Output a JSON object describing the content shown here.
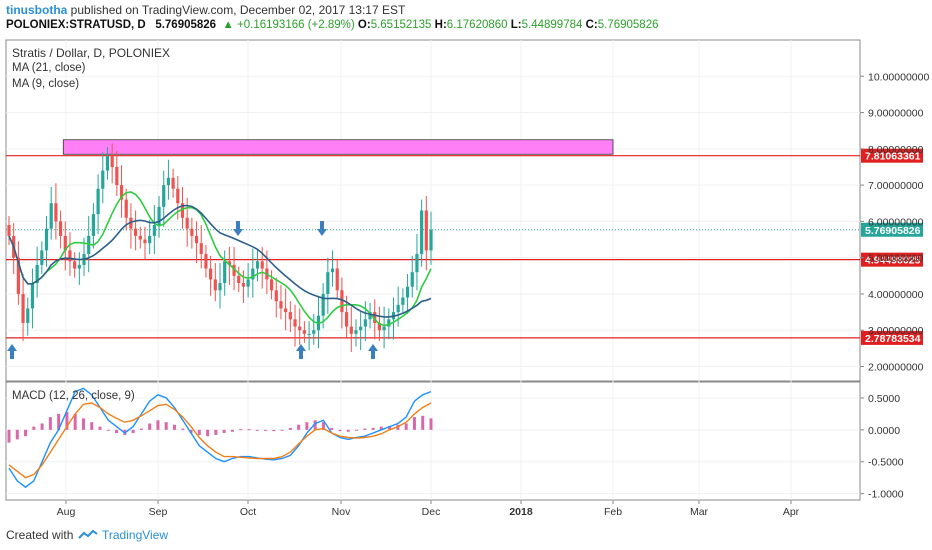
{
  "header": {
    "user": "tinusbotha",
    "published": "published on TradingView.com, December 02, 2017 13:17 EST",
    "symbol": "POLONIEX:STRATUSD, D",
    "last": "5.76905826",
    "change": "▲ +0.16193166 (+2.89%)",
    "o_label": "O:",
    "o": "5.65152135",
    "h_label": "H:",
    "h": "6.17620860",
    "l_label": "L:",
    "l": "5.44899784",
    "c_label": "C:",
    "c": "5.76905826"
  },
  "legend": {
    "title": "Stratis / Dollar, D, POLONIEX",
    "ma21": "MA (21, close)",
    "ma9": "MA (9, close)",
    "macd": "MACD (12, 26, close, 9)"
  },
  "footer": {
    "created": "Created with",
    "brand": "TradingView"
  },
  "colors": {
    "up": "#26a69a",
    "down": "#ef5350",
    "ma9": "#2ecc40",
    "ma21": "#2c5f8a",
    "hline": "#e02020",
    "zone": "#ff7ff6",
    "macd": "#1e90ff",
    "signal": "#f07f1a",
    "hist": "#d44c9c",
    "arrow": "#3a7fc1"
  },
  "chart_data": [
    {
      "type": "candlestick",
      "title": "Stratis / Dollar, D, POLONIEX",
      "x_ticks": [
        "Aug",
        "Sep",
        "Oct",
        "Nov",
        "Dec",
        "2018",
        "Feb",
        "Mar",
        "Apr"
      ],
      "y_ticks": [
        "10.00000000",
        "9.00000000",
        "8.00000000",
        "7.00000000",
        "6.00000000",
        "5.00000000",
        "4.00000000",
        "3.00000000",
        "2.00000000"
      ],
      "ylim": [
        1.6,
        11.0
      ],
      "close": [
        5.6,
        5.0,
        4.0,
        3.2,
        3.6,
        4.3,
        4.8,
        5.2,
        5.8,
        6.5,
        6.0,
        5.6,
        5.2,
        4.9,
        4.7,
        4.8,
        5.1,
        5.6,
        6.2,
        6.9,
        7.4,
        7.8,
        7.5,
        7.0,
        6.6,
        6.1,
        5.8,
        5.6,
        5.5,
        5.4,
        5.6,
        5.9,
        6.4,
        7.0,
        7.2,
        6.9,
        6.5,
        6.1,
        5.8,
        5.6,
        5.4,
        5.1,
        4.7,
        4.4,
        4.1,
        4.3,
        4.9,
        4.8,
        4.5,
        4.3,
        4.2,
        4.4,
        4.7,
        4.9,
        4.7,
        4.4,
        4.1,
        3.8,
        3.6,
        3.5,
        3.3,
        3.1,
        3.0,
        2.9,
        2.9,
        3.0,
        3.4,
        4.0,
        4.6,
        4.7,
        4.1,
        3.5,
        3.1,
        2.9,
        3.0,
        3.1,
        3.3,
        3.5,
        3.2,
        3.0,
        3.1,
        3.3,
        3.5,
        3.7,
        3.9,
        4.2,
        4.6,
        5.1,
        6.3,
        5.2,
        5.77
      ],
      "hlines": [
        {
          "value": 7.81063361,
          "label": "7.81063361"
        },
        {
          "value": 4.94498025,
          "label": "4.94498025"
        },
        {
          "value": 2.78783534,
          "label": "2.78783534"
        }
      ],
      "last_price": {
        "value": 5.76905826,
        "label": "5.76905826"
      },
      "zone": {
        "from": 7.85,
        "to": 8.25,
        "start_index": 12,
        "end_date": "Feb"
      }
    },
    {
      "type": "line",
      "title": "MACD (12, 26, close, 9)",
      "y_ticks": [
        "0.5000",
        "0.0000",
        "-0.5000",
        "-1.0000"
      ],
      "ylim": [
        -1.1,
        0.75
      ],
      "series": [
        {
          "name": "MACD",
          "values": [
            -0.6,
            -0.8,
            -0.9,
            -0.8,
            -0.5,
            -0.2,
            0.0,
            0.3,
            0.6,
            0.65,
            0.55,
            0.35,
            0.15,
            0.05,
            -0.05,
            0.05,
            0.25,
            0.45,
            0.55,
            0.5,
            0.35,
            0.15,
            -0.05,
            -0.25,
            -0.35,
            -0.45,
            -0.5,
            -0.45,
            -0.42,
            -0.42,
            -0.44,
            -0.46,
            -0.47,
            -0.45,
            -0.4,
            -0.25,
            -0.05,
            0.1,
            0.15,
            -0.05,
            -0.12,
            -0.15,
            -0.12,
            -0.1,
            -0.05,
            0.0,
            0.05,
            0.1,
            0.2,
            0.45,
            0.55,
            0.6
          ]
        },
        {
          "name": "Signal",
          "values": [
            -0.55,
            -0.65,
            -0.75,
            -0.7,
            -0.55,
            -0.35,
            -0.15,
            0.05,
            0.25,
            0.4,
            0.42,
            0.35,
            0.25,
            0.18,
            0.12,
            0.15,
            0.22,
            0.3,
            0.38,
            0.4,
            0.32,
            0.2,
            0.05,
            -0.12,
            -0.25,
            -0.35,
            -0.42,
            -0.42,
            -0.43,
            -0.44,
            -0.45,
            -0.45,
            -0.45,
            -0.42,
            -0.35,
            -0.22,
            -0.1,
            0.0,
            0.02,
            -0.05,
            -0.1,
            -0.12,
            -0.13,
            -0.12,
            -0.1,
            -0.06,
            0.0,
            0.05,
            0.12,
            0.25,
            0.35,
            0.42
          ]
        },
        {
          "name": "Histogram",
          "values": [
            -0.2,
            -0.15,
            -0.1,
            0.05,
            0.1,
            0.2,
            0.25,
            0.28,
            0.25,
            0.18,
            0.12,
            0.05,
            0.0,
            -0.05,
            -0.08,
            -0.05,
            0.02,
            0.1,
            0.15,
            0.12,
            0.08,
            0.02,
            -0.05,
            -0.08,
            -0.1,
            -0.08,
            -0.05,
            -0.03,
            0.01,
            0.01,
            0.0,
            -0.01,
            -0.02,
            0.0,
            0.03,
            0.08,
            0.12,
            0.15,
            0.12,
            0.03,
            -0.02,
            -0.03,
            0.0,
            0.02,
            0.03,
            0.05,
            0.06,
            0.08,
            0.1,
            0.2,
            0.22,
            0.18
          ]
        }
      ]
    }
  ]
}
